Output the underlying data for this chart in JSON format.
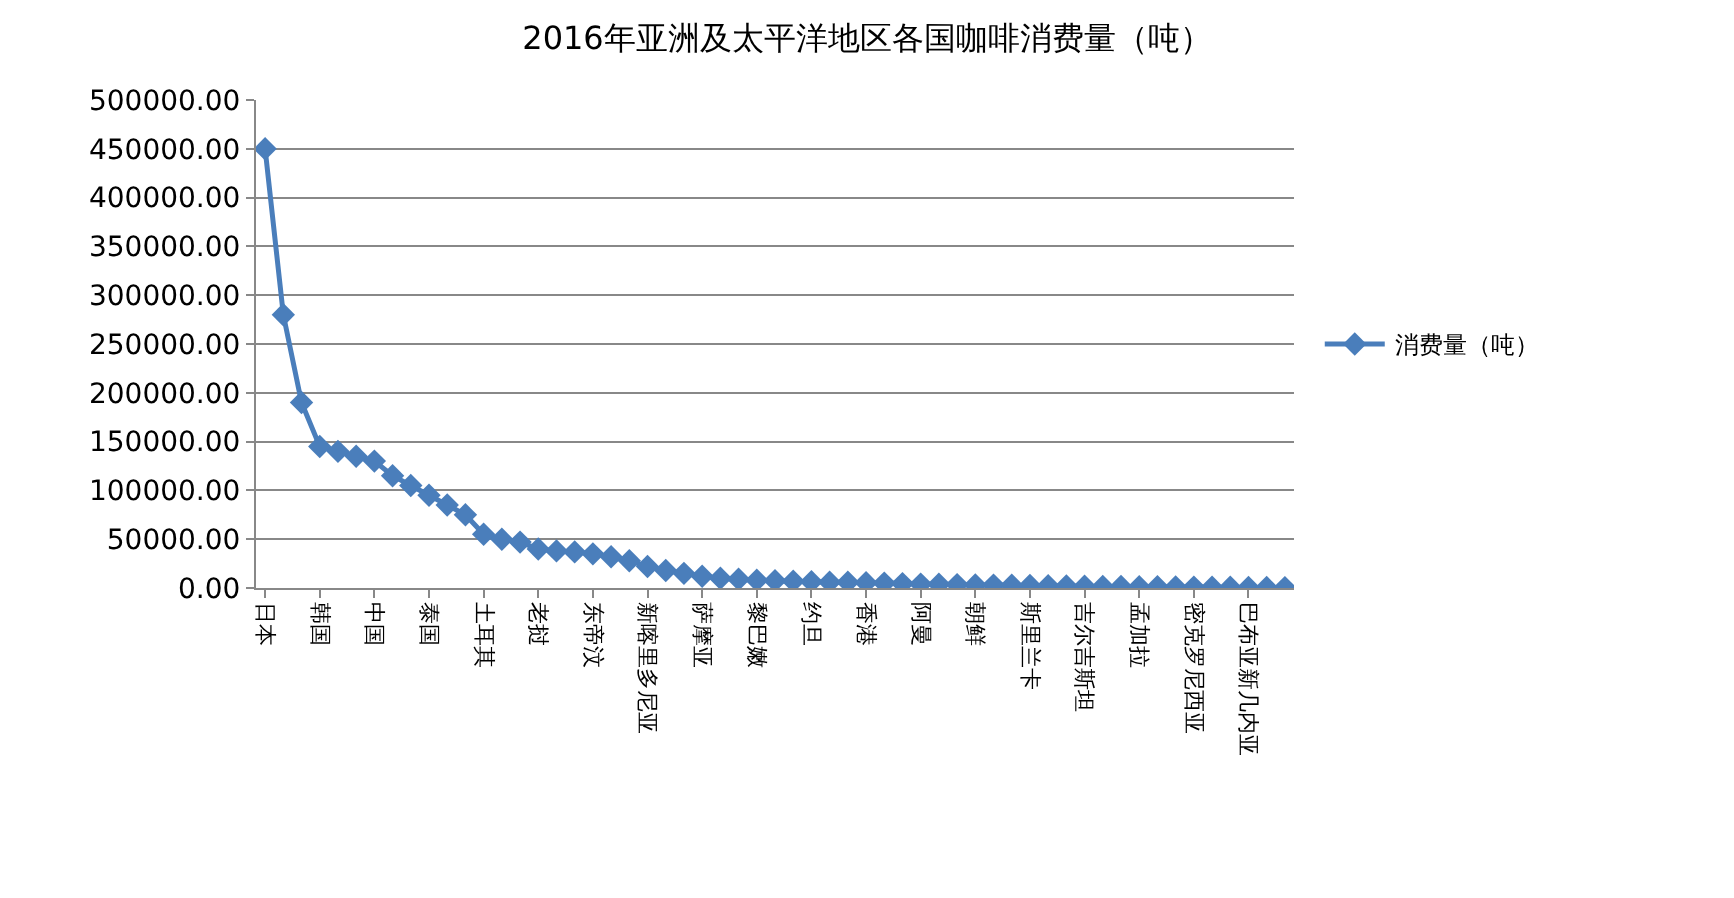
{
  "chart_data": {
    "type": "line",
    "title": "2016年亚洲及太平洋地区各国咖啡消费量（吨）",
    "categories": [
      "日本",
      null,
      null,
      "韩国",
      null,
      null,
      "中国",
      null,
      null,
      "泰国",
      null,
      null,
      "土耳其",
      null,
      null,
      "老挝",
      null,
      null,
      "东帝汶",
      null,
      null,
      "新喀里多尼亚",
      null,
      null,
      "萨摩亚",
      null,
      null,
      "黎巴嫩",
      null,
      null,
      "约旦",
      null,
      null,
      "香港",
      null,
      null,
      "阿曼",
      null,
      null,
      "朝鲜",
      null,
      null,
      "斯里兰卡",
      null,
      null,
      "吉尔吉斯坦",
      null,
      null,
      "孟加拉",
      null,
      null,
      "密克罗尼西亚",
      null,
      null,
      "巴布亚新几内亚",
      null,
      null
    ],
    "series": [
      {
        "name": "消费量（吨）",
        "color": "#4a7ebb",
        "values": [
          450000,
          280000,
          190000,
          145000,
          140000,
          135000,
          130000,
          115000,
          105000,
          95000,
          85000,
          75000,
          55000,
          50000,
          47000,
          40000,
          38000,
          37000,
          35000,
          32000,
          28000,
          22000,
          18000,
          15000,
          12000,
          10000,
          9000,
          8000,
          7500,
          7000,
          6500,
          6000,
          6000,
          5500,
          5000,
          4500,
          4000,
          3800,
          3500,
          3200,
          3000,
          2800,
          2500,
          2300,
          2000,
          1800,
          1600,
          1500,
          1300,
          1200,
          1000,
          900,
          800,
          700,
          600,
          500,
          400
        ]
      }
    ],
    "ylim": [
      0,
      500000
    ],
    "yticks": [
      {
        "value": 0,
        "label": "0.00"
      },
      {
        "value": 50000,
        "label": "50000.00"
      },
      {
        "value": 100000,
        "label": "100000.00"
      },
      {
        "value": 150000,
        "label": "150000.00"
      },
      {
        "value": 200000,
        "label": "200000.00"
      },
      {
        "value": 250000,
        "label": "250000.00"
      },
      {
        "value": 300000,
        "label": "300000.00"
      },
      {
        "value": 350000,
        "label": "350000.00"
      },
      {
        "value": 400000,
        "label": "400000.00"
      },
      {
        "value": 450000,
        "label": "450000.00"
      },
      {
        "value": 500000,
        "label": "500000.00"
      }
    ],
    "grid": "y",
    "legend": "right",
    "marker": "diamond",
    "line_style": "solid"
  }
}
